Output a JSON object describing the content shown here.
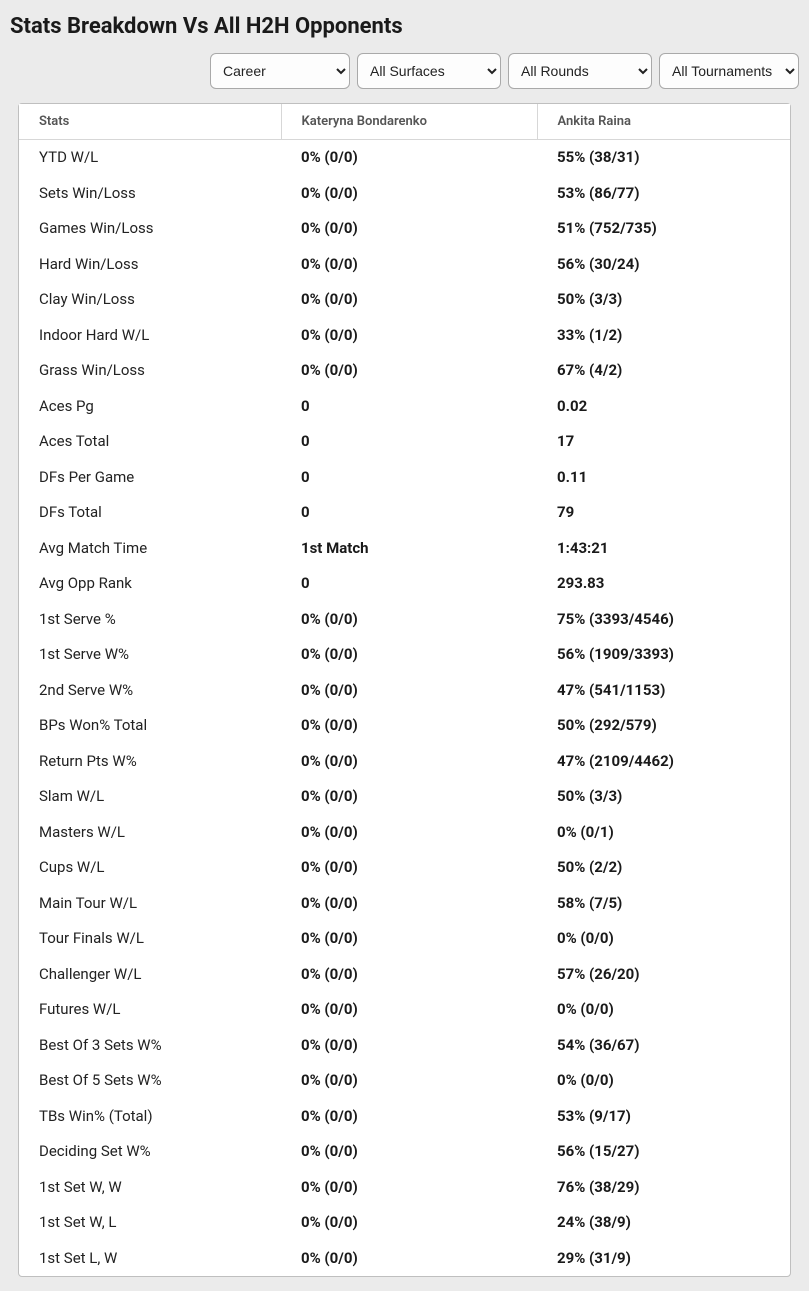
{
  "page_title": "Stats Breakdown Vs All H2H Opponents",
  "filters": {
    "timeframe": {
      "selected": "Career",
      "options": [
        "Career"
      ]
    },
    "surface": {
      "selected": "All Surfaces",
      "options": [
        "All Surfaces"
      ]
    },
    "round": {
      "selected": "All Rounds",
      "options": [
        "All Rounds"
      ]
    },
    "tour": {
      "selected": "All Tournaments",
      "options": [
        "All Tournaments"
      ]
    }
  },
  "table": {
    "header_stats": "Stats",
    "player1": "Kateryna Bondarenko",
    "player2": "Ankita Raina",
    "rows": [
      {
        "stat": "YTD W/L",
        "p1": "0% (0/0)",
        "p2": "55% (38/31)"
      },
      {
        "stat": "Sets Win/Loss",
        "p1": "0% (0/0)",
        "p2": "53% (86/77)"
      },
      {
        "stat": "Games Win/Loss",
        "p1": "0% (0/0)",
        "p2": "51% (752/735)"
      },
      {
        "stat": "Hard Win/Loss",
        "p1": "0% (0/0)",
        "p2": "56% (30/24)"
      },
      {
        "stat": "Clay Win/Loss",
        "p1": "0% (0/0)",
        "p2": "50% (3/3)"
      },
      {
        "stat": "Indoor Hard W/L",
        "p1": "0% (0/0)",
        "p2": "33% (1/2)"
      },
      {
        "stat": "Grass Win/Loss",
        "p1": "0% (0/0)",
        "p2": "67% (4/2)"
      },
      {
        "stat": "Aces Pg",
        "p1": "0",
        "p2": "0.02"
      },
      {
        "stat": "Aces Total",
        "p1": "0",
        "p2": "17"
      },
      {
        "stat": "DFs Per Game",
        "p1": "0",
        "p2": "0.11"
      },
      {
        "stat": "DFs Total",
        "p1": "0",
        "p2": "79"
      },
      {
        "stat": "Avg Match Time",
        "p1": "1st Match",
        "p2": "1:43:21"
      },
      {
        "stat": "Avg Opp Rank",
        "p1": "0",
        "p2": "293.83"
      },
      {
        "stat": "1st Serve %",
        "p1": "0% (0/0)",
        "p2": "75% (3393/4546)"
      },
      {
        "stat": "1st Serve W%",
        "p1": "0% (0/0)",
        "p2": "56% (1909/3393)"
      },
      {
        "stat": "2nd Serve W%",
        "p1": "0% (0/0)",
        "p2": "47% (541/1153)"
      },
      {
        "stat": "BPs Won% Total",
        "p1": "0% (0/0)",
        "p2": "50% (292/579)"
      },
      {
        "stat": "Return Pts W%",
        "p1": "0% (0/0)",
        "p2": "47% (2109/4462)"
      },
      {
        "stat": "Slam W/L",
        "p1": "0% (0/0)",
        "p2": "50% (3/3)"
      },
      {
        "stat": "Masters W/L",
        "p1": "0% (0/0)",
        "p2": "0% (0/1)"
      },
      {
        "stat": "Cups W/L",
        "p1": "0% (0/0)",
        "p2": "50% (2/2)"
      },
      {
        "stat": "Main Tour W/L",
        "p1": "0% (0/0)",
        "p2": "58% (7/5)"
      },
      {
        "stat": "Tour Finals W/L",
        "p1": "0% (0/0)",
        "p2": "0% (0/0)"
      },
      {
        "stat": "Challenger W/L",
        "p1": "0% (0/0)",
        "p2": "57% (26/20)"
      },
      {
        "stat": "Futures W/L",
        "p1": "0% (0/0)",
        "p2": "0% (0/0)"
      },
      {
        "stat": "Best Of 3 Sets W%",
        "p1": "0% (0/0)",
        "p2": "54% (36/67)"
      },
      {
        "stat": "Best Of 5 Sets W%",
        "p1": "0% (0/0)",
        "p2": "0% (0/0)"
      },
      {
        "stat": "TBs Win% (Total)",
        "p1": "0% (0/0)",
        "p2": "53% (9/17)"
      },
      {
        "stat": "Deciding Set W%",
        "p1": "0% (0/0)",
        "p2": "56% (15/27)"
      },
      {
        "stat": "1st Set W, W",
        "p1": "0% (0/0)",
        "p2": "76% (38/29)"
      },
      {
        "stat": "1st Set W, L",
        "p1": "0% (0/0)",
        "p2": "24% (38/9)"
      },
      {
        "stat": "1st Set L, W",
        "p1": "0% (0/0)",
        "p2": "29% (31/9)"
      }
    ]
  },
  "colors": {
    "page_bg": "#ebebeb",
    "card_bg": "#ffffff",
    "border": "#bfbfbf",
    "header_border": "#d7d7d7",
    "text": "#1a1a1a",
    "muted_text": "#555555"
  }
}
